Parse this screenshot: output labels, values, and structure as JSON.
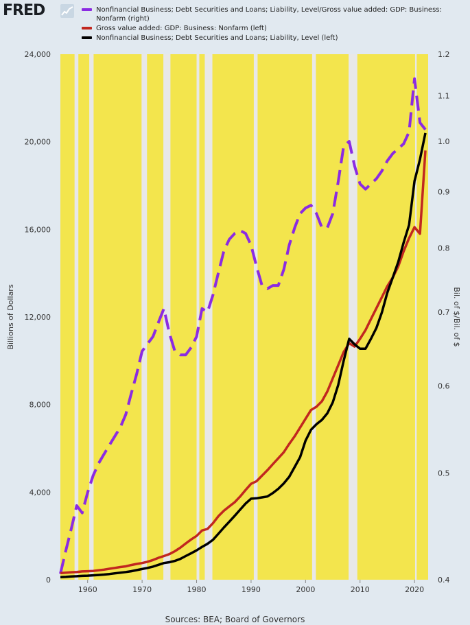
{
  "header": {
    "logo_text": "FRED"
  },
  "legend": [
    {
      "label": "Nonfinancial Business; Debt Securities and Loans; Liability, Level/Gross value added: GDP: Business: Nonfarm (right)",
      "color": "#8b2be2"
    },
    {
      "label": "Gross value added: GDP: Business: Nonfarm (left)",
      "color": "#c1271f"
    },
    {
      "label": "Nonfinancial Business; Debt Securities and Loans; Liability, Level (left)",
      "color": "#000000"
    }
  ],
  "footer": {
    "source": "Sources: BEA; Board of Governors"
  },
  "colors": {
    "background": "#e1e9f0",
    "plot_fill": "#f3e54d",
    "recession_band": "#e8e8e8"
  },
  "chart_data": {
    "type": "line",
    "ylabel_left": "Billions of Dollars",
    "ylabel_right": "Bil. of $/Bil. of $",
    "x_ticks": [
      "1960",
      "1970",
      "1980",
      "1990",
      "2000",
      "2010",
      "2020"
    ],
    "y_left_ticks": [
      "0",
      "4,000",
      "8,000",
      "12,000",
      "16,000",
      "20,000",
      "24,000"
    ],
    "y_right_ticks": [
      "0.4",
      "0.5",
      "0.6",
      "0.7",
      "0.8",
      "0.9",
      "1.0",
      "1.1",
      "1.2"
    ],
    "xlim": [
      1955,
      2022.5
    ],
    "ylim_left": [
      0,
      24000
    ],
    "ylim_right": [
      0.4,
      1.2
    ],
    "right_axis_scale": "log",
    "grid": false,
    "recessions": [
      [
        1957.6,
        1958.3
      ],
      [
        1960.3,
        1961.1
      ],
      [
        1969.9,
        1970.9
      ],
      [
        1973.9,
        1975.2
      ],
      [
        1980.0,
        1980.5
      ],
      [
        1981.5,
        1982.9
      ],
      [
        1990.5,
        1991.2
      ],
      [
        2001.2,
        2001.9
      ],
      [
        2007.9,
        2009.5
      ],
      [
        2020.1,
        2020.4
      ]
    ],
    "series": [
      {
        "name": "Nonfinancial Business; Debt Securities and Loans; Liability, Level/Gross value added: GDP: Business: Nonfarm (right)",
        "axis": "right",
        "style": "dashed",
        "x": [
          1955,
          1956,
          1957,
          1958,
          1959,
          1960,
          1961,
          1962,
          1963,
          1964,
          1965,
          1966,
          1967,
          1968,
          1969,
          1970,
          1971,
          1972,
          1973,
          1974,
          1975,
          1976,
          1977,
          1978,
          1979,
          1980,
          1981,
          1982,
          1983,
          1984,
          1985,
          1986,
          1987,
          1988,
          1989,
          1990,
          1991,
          1992,
          1993,
          1994,
          1995,
          1996,
          1997,
          1998,
          1999,
          2000,
          2001,
          2002,
          2003,
          2004,
          2005,
          2006,
          2007,
          2008,
          2009,
          2010,
          2011,
          2012,
          2013,
          2014,
          2015,
          2016,
          2017,
          2018,
          2019,
          2020,
          2021,
          2022
        ],
        "values": [
          0.405,
          0.425,
          0.445,
          0.467,
          0.46,
          0.48,
          0.497,
          0.51,
          0.52,
          0.53,
          0.54,
          0.55,
          0.565,
          0.59,
          0.615,
          0.645,
          0.655,
          0.665,
          0.685,
          0.705,
          0.67,
          0.645,
          0.64,
          0.64,
          0.65,
          0.665,
          0.705,
          0.7,
          0.725,
          0.76,
          0.795,
          0.815,
          0.825,
          0.83,
          0.825,
          0.805,
          0.77,
          0.74,
          0.735,
          0.74,
          0.74,
          0.765,
          0.805,
          0.835,
          0.86,
          0.87,
          0.875,
          0.86,
          0.835,
          0.835,
          0.86,
          0.92,
          0.99,
          1.0,
          0.95,
          0.915,
          0.905,
          0.915,
          0.925,
          0.94,
          0.96,
          0.975,
          0.985,
          0.995,
          1.02,
          1.14,
          1.04,
          1.025
        ]
      },
      {
        "name": "Gross value added: GDP: Business: Nonfarm (left)",
        "axis": "left",
        "style": "solid",
        "x": [
          1955,
          1956,
          1957,
          1958,
          1959,
          1960,
          1961,
          1962,
          1963,
          1964,
          1965,
          1966,
          1967,
          1968,
          1969,
          1970,
          1971,
          1972,
          1973,
          1974,
          1975,
          1976,
          1977,
          1978,
          1979,
          1980,
          1981,
          1982,
          1983,
          1984,
          1985,
          1986,
          1987,
          1988,
          1989,
          1990,
          1991,
          1992,
          1993,
          1994,
          1995,
          1996,
          1997,
          1998,
          1999,
          2000,
          2001,
          2002,
          2003,
          2004,
          2005,
          2006,
          2007,
          2008,
          2009,
          2010,
          2011,
          2012,
          2013,
          2014,
          2015,
          2016,
          2017,
          2018,
          2019,
          2020,
          2021,
          2022
        ],
        "values": [
          300,
          320,
          340,
          350,
          380,
          390,
          400,
          430,
          460,
          500,
          540,
          580,
          610,
          670,
          720,
          760,
          820,
          900,
          1000,
          1080,
          1170,
          1300,
          1460,
          1650,
          1840,
          2000,
          2250,
          2320,
          2580,
          2900,
          3150,
          3350,
          3540,
          3800,
          4100,
          4380,
          4500,
          4750,
          5000,
          5280,
          5550,
          5820,
          6200,
          6550,
          6950,
          7350,
          7750,
          7900,
          8150,
          8600,
          9200,
          9800,
          10400,
          10800,
          10650,
          11000,
          11400,
          11900,
          12400,
          12900,
          13400,
          13800,
          14300,
          15000,
          15600,
          16100,
          15800,
          19600
        ]
      },
      {
        "name": "Nonfinancial Business; Debt Securities and Loans; Liability, Level (left)",
        "axis": "left",
        "style": "solid",
        "x": [
          1955,
          1956,
          1957,
          1958,
          1959,
          1960,
          1961,
          1962,
          1963,
          1964,
          1965,
          1966,
          1967,
          1968,
          1969,
          1970,
          1971,
          1972,
          1973,
          1974,
          1975,
          1976,
          1977,
          1978,
          1979,
          1980,
          1981,
          1982,
          1983,
          1984,
          1985,
          1986,
          1987,
          1988,
          1989,
          1990,
          1991,
          1992,
          1993,
          1994,
          1995,
          1996,
          1997,
          1998,
          1999,
          2000,
          2001,
          2002,
          2003,
          2004,
          2005,
          2006,
          2007,
          2008,
          2009,
          2010,
          2011,
          2012,
          2013,
          2014,
          2015,
          2016,
          2017,
          2018,
          2019,
          2020,
          2021,
          2022
        ],
        "values": [
          120,
          130,
          150,
          160,
          175,
          185,
          200,
          215,
          235,
          260,
          290,
          320,
          350,
          390,
          440,
          490,
          540,
          600,
          680,
          760,
          800,
          860,
          950,
          1080,
          1210,
          1340,
          1500,
          1640,
          1820,
          2100,
          2380,
          2650,
          2920,
          3200,
          3480,
          3700,
          3720,
          3760,
          3800,
          3960,
          4150,
          4400,
          4700,
          5150,
          5600,
          6350,
          6850,
          7100,
          7300,
          7600,
          8100,
          8900,
          10000,
          11000,
          10750,
          10550,
          10550,
          11000,
          11500,
          12200,
          13100,
          13800,
          14500,
          15400,
          16200,
          18200,
          19200,
          20400
        ]
      }
    ]
  }
}
